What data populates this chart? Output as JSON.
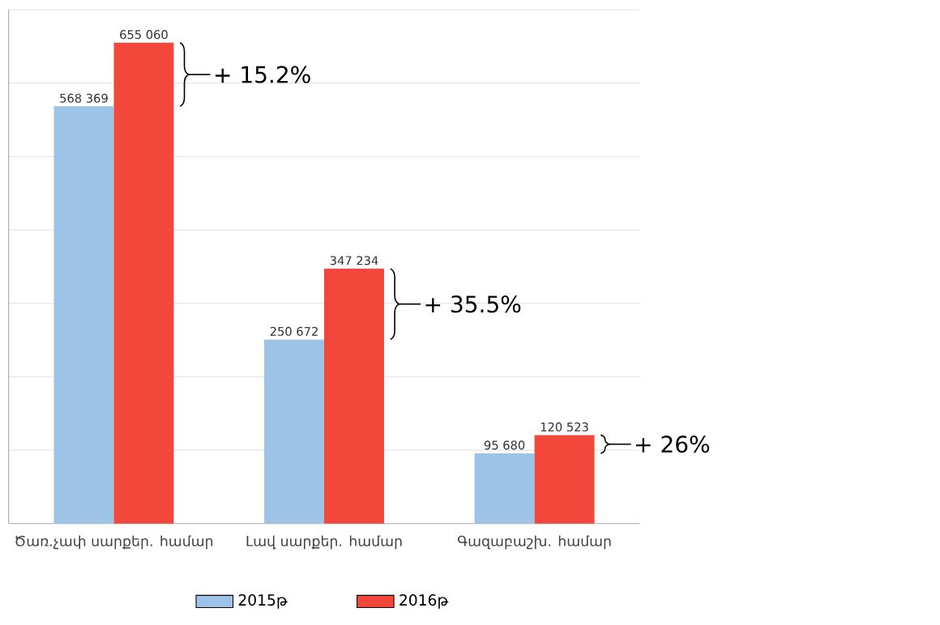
{
  "chart_data": {
    "type": "bar",
    "categories": [
      "Ծառ.չափ սարքեր. համար",
      "Լավ սարքեր. համար",
      "Գազաբաշխ. համար"
    ],
    "series": [
      {
        "name": "2015թ",
        "color": "#9dc3e6",
        "values": [
          568369,
          250672,
          95680
        ],
        "value_labels": [
          "568 369",
          "250 672",
          "95 680"
        ]
      },
      {
        "name": "2016թ",
        "color": "#f4473c",
        "values": [
          655060,
          347234,
          120523
        ],
        "value_labels": [
          "655 060",
          "347 234",
          "120 523"
        ]
      }
    ],
    "annotations": [
      "+ 15.2%",
      "+ 35.5%",
      "+ 26%"
    ],
    "ylim": [
      0,
      700000
    ],
    "yticks": [
      {
        "value": 100000,
        "label": null
      },
      {
        "value": 200000,
        "label": null
      },
      {
        "value": 300000,
        "label": null
      },
      {
        "value": 400000,
        "label": null
      },
      {
        "value": 500000,
        "label": null
      },
      {
        "value": 600000,
        "label": null
      },
      {
        "value": 700000,
        "label": null
      }
    ],
    "tick_labels": "x",
    "grid": "y",
    "legend": "bottom"
  }
}
